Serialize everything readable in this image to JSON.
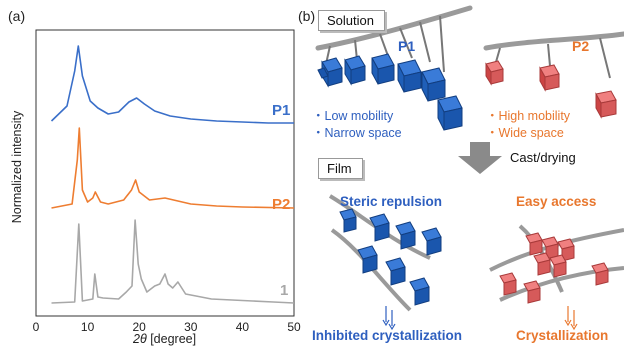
{
  "panel_a": {
    "label": "(a)",
    "ylabel": "Normalized intensity",
    "xlabel_italic": "2θ",
    "xlabel_rest": " [degree]",
    "xticks": [
      "0",
      "10",
      "20",
      "30",
      "40",
      "50"
    ],
    "series_labels": [
      "P1",
      "P2",
      "1"
    ],
    "colors": {
      "P1": "#3a6fc9",
      "P2": "#ee7d31",
      "1": "#a8a8a8"
    }
  },
  "panel_b": {
    "label": "(b)",
    "solution_tag": "Solution",
    "film_tag": "Film",
    "p1_title": "P1",
    "p2_title": "P2",
    "p1_bullets": [
      "・Low mobility",
      "・Narrow space"
    ],
    "p2_bullets": [
      "・High mobility",
      "・Wide space"
    ],
    "arrow_label": "Cast/drying",
    "film_left_title": "Steric repulsion",
    "film_right_title": "Easy access",
    "film_left_result": "Inhibited crystallization",
    "film_right_result": "Crystallization"
  },
  "chart_data": {
    "type": "line",
    "xlim": [
      0,
      50
    ],
    "xticks": [
      0,
      10,
      20,
      30,
      40,
      50
    ],
    "xlabel": "2θ [degree]",
    "ylabel": "Normalized intensity",
    "series": [
      {
        "name": "P1",
        "x": [
          3,
          6,
          7.5,
          8.2,
          9,
          10.5,
          12,
          14,
          16,
          18,
          19.5,
          21,
          23,
          26,
          30,
          35,
          40,
          45,
          50
        ],
        "y": [
          0.05,
          0.2,
          0.55,
          0.8,
          0.5,
          0.25,
          0.18,
          0.12,
          0.14,
          0.24,
          0.28,
          0.22,
          0.15,
          0.1,
          0.07,
          0.05,
          0.04,
          0.03,
          0.03
        ]
      },
      {
        "name": "P2",
        "x": [
          3,
          7,
          8,
          8.4,
          9,
          10,
          11,
          11.5,
          12.5,
          14,
          17,
          18.5,
          19.3,
          20,
          22,
          25,
          30,
          35,
          40,
          50
        ],
        "y": [
          0.02,
          0.06,
          0.5,
          0.82,
          0.2,
          0.08,
          0.12,
          0.18,
          0.08,
          0.06,
          0.1,
          0.2,
          0.3,
          0.18,
          0.1,
          0.12,
          0.06,
          0.04,
          0.03,
          0.02
        ]
      },
      {
        "name": "1",
        "x": [
          3,
          7.5,
          8.3,
          9,
          11,
          11.4,
          12,
          13,
          16,
          17.5,
          18.6,
          19.2,
          19.8,
          20.4,
          21.5,
          23,
          24,
          25,
          25.6,
          26.5,
          27.5,
          29,
          31,
          34,
          38,
          42,
          46,
          50
        ],
        "y": [
          0.01,
          0.02,
          0.8,
          0.03,
          0.05,
          0.3,
          0.07,
          0.06,
          0.05,
          0.12,
          0.18,
          0.84,
          0.4,
          0.25,
          0.12,
          0.18,
          0.2,
          0.3,
          0.2,
          0.16,
          0.22,
          0.1,
          0.08,
          0.05,
          0.04,
          0.03,
          0.02,
          0.01
        ]
      }
    ]
  }
}
